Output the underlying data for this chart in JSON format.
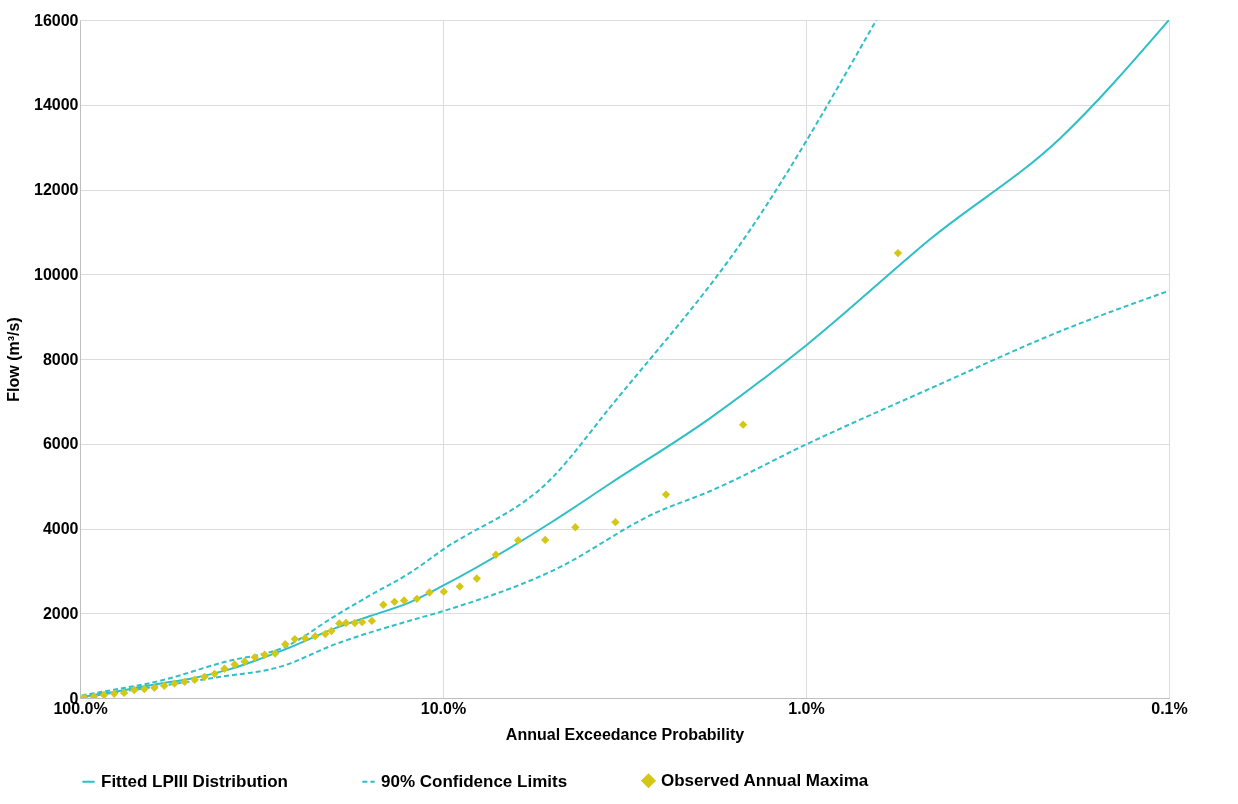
{
  "chart_data": {
    "type": "line",
    "xlabel": "Annual Exceedance Probability",
    "ylabel": "Flow (m³/s)",
    "log": "x",
    "xlim": [
      100,
      0.1
    ],
    "ylim": [
      0,
      16000
    ],
    "xticks": [
      {
        "value": 100,
        "label": "100.0%"
      },
      {
        "value": 10,
        "label": "10.0%"
      },
      {
        "value": 1,
        "label": "1.0%"
      },
      {
        "value": 0.1,
        "label": "0.1%"
      }
    ],
    "yticks": [
      0,
      2000,
      4000,
      6000,
      8000,
      10000,
      12000,
      14000,
      16000
    ],
    "grid": true,
    "legend": "bottom",
    "series": [
      {
        "name": "Fitted LPIII Distribution",
        "line_style": "solid",
        "marker": "none",
        "color": "#2fbfc6",
        "x": [
          99,
          90,
          80,
          70,
          60,
          50,
          39,
          27.2,
          19.8,
          15.8,
          12.4,
          10,
          5,
          3.48,
          1.84,
          0.99,
          0.45,
          0.2,
          0.1
        ],
        "values": [
          20,
          80,
          150,
          240,
          340,
          450,
          670,
          1150,
          1650,
          1940,
          2250,
          2650,
          4160,
          5050,
          6600,
          8350,
          10860,
          13200,
          16000
        ]
      },
      {
        "name": "90% Confidence Limits",
        "line_style": "dashed",
        "marker": "none",
        "color": "#2fbfc6",
        "x": [
          99,
          80,
          62,
          40,
          27,
          19.8,
          15.9,
          12.4,
          10,
          5,
          3.48,
          1.43,
          0.64
        ],
        "values": [
          60,
          200,
          380,
          850,
          1220,
          1940,
          2420,
          2940,
          3500,
          5200,
          6840,
          11030,
          16000
        ]
      },
      {
        "line_style": "dashed",
        "marker": "none",
        "color": "#2fbfc6",
        "x": [
          99,
          70,
          41,
          28,
          19.8,
          12.4,
          10,
          5,
          2.58,
          1.84,
          0.99,
          0.45,
          0.2,
          0.1
        ],
        "values": [
          10,
          200,
          500,
          740,
          1270,
          1820,
          2050,
          3000,
          4380,
          4880,
          6000,
          7320,
          8650,
          9610
        ]
      },
      {
        "name": "Observed Annual Maxima",
        "type": "scatter",
        "marker": "diamond",
        "color": "#d4c716",
        "x": [
          97.5,
          91.5,
          85.9,
          80.5,
          75.6,
          70.9,
          66.5,
          62.4,
          58.6,
          54.9,
          51.5,
          48.3,
          45.4,
          42.6,
          40.0,
          37.5,
          35.2,
          33.0,
          31.0,
          29.0,
          27.2,
          25.6,
          24.0,
          22.5,
          21.1,
          20.3,
          19.3,
          18.5,
          17.5,
          16.7,
          15.7,
          14.6,
          13.6,
          12.8,
          11.8,
          10.9,
          9.95,
          8.99,
          8.07,
          7.15,
          6.21,
          5.23,
          4.32,
          3.35,
          2.43,
          1.49,
          0.558
        ],
        "values": [
          10,
          30,
          70,
          100,
          120,
          190,
          210,
          240,
          290,
          340,
          380,
          430,
          500,
          570,
          690,
          790,
          860,
          960,
          1020,
          1050,
          1270,
          1390,
          1410,
          1460,
          1510,
          1580,
          1760,
          1770,
          1770,
          1790,
          1820,
          2200,
          2270,
          2300,
          2340,
          2490,
          2510,
          2630,
          2820,
          3380,
          3720,
          3730,
          4030,
          4150,
          4800,
          6450,
          10500
        ]
      }
    ]
  }
}
